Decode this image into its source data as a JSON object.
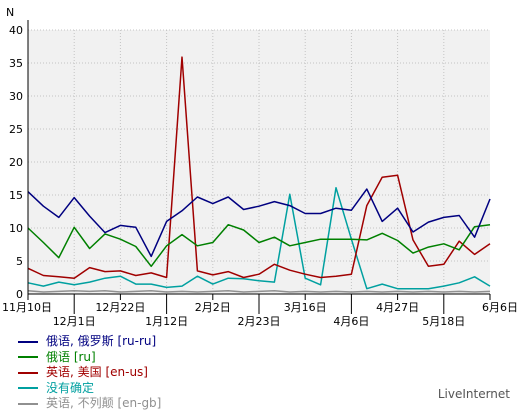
{
  "chart_data": {
    "type": "line",
    "ylabel": "N",
    "ylim": [
      0,
      40
    ],
    "yticks": [
      0,
      5,
      10,
      15,
      20,
      25,
      30,
      35,
      40
    ],
    "grid": true,
    "x_tick_labels": [
      {
        "label": "11月10日",
        "x": 0
      },
      {
        "label": "12月1日",
        "x": 3
      },
      {
        "label": "12月22日",
        "x": 6
      },
      {
        "label": "1月12日",
        "x": 9
      },
      {
        "label": "2月2日",
        "x": 12
      },
      {
        "label": "2月23日",
        "x": 15
      },
      {
        "label": "3月16日",
        "x": 18
      },
      {
        "label": "4月6日",
        "x": 21
      },
      {
        "label": "4月27日",
        "x": 24
      },
      {
        "label": "5月18日",
        "x": 27
      },
      {
        "label": "6月6日",
        "x": 30
      }
    ],
    "series": [
      {
        "name": "俄语, 俄罗斯 [ru-ru]",
        "color": "#000080",
        "values": [
          15.5,
          13.3,
          11.6,
          14.6,
          11.8,
          9.3,
          10.4,
          10.1,
          5.7,
          11.0,
          12.6,
          14.7,
          13.7,
          14.7,
          12.8,
          13.3,
          14.0,
          13.4,
          12.2,
          12.2,
          13.0,
          12.7,
          15.9,
          11.0,
          13.0,
          9.4,
          10.9,
          11.6,
          11.9,
          8.6,
          14.4
        ]
      },
      {
        "name": "俄语 [ru]",
        "color": "#008000",
        "values": [
          10.0,
          7.8,
          5.5,
          10.1,
          6.9,
          9.1,
          8.3,
          7.2,
          4.2,
          7.3,
          9.0,
          7.3,
          7.8,
          10.5,
          9.7,
          7.8,
          8.6,
          7.3,
          7.8,
          8.3,
          8.3,
          8.3,
          8.2,
          9.2,
          8.1,
          6.2,
          7.1,
          7.6,
          6.7,
          10.2,
          10.5
        ]
      },
      {
        "name": "英语, 美国 [en-us]",
        "color": "#a00000",
        "values": [
          3.9,
          2.8,
          2.6,
          2.4,
          4.0,
          3.4,
          3.5,
          2.8,
          3.2,
          2.5,
          35.9,
          3.5,
          2.9,
          3.4,
          2.5,
          3.0,
          4.5,
          3.6,
          3.0,
          2.5,
          2.7,
          3.0,
          13.4,
          17.7,
          18.0,
          8.2,
          4.2,
          4.5,
          8.0,
          6.0,
          7.6
        ]
      },
      {
        "name": "没有确定",
        "color": "#00a0a0",
        "values": [
          1.7,
          1.2,
          1.8,
          1.4,
          1.8,
          2.4,
          2.7,
          1.5,
          1.5,
          1.0,
          1.2,
          2.7,
          1.5,
          2.4,
          2.3,
          2.0,
          1.8,
          15.1,
          2.4,
          1.4,
          16.1,
          8.3,
          0.8,
          1.5,
          0.8,
          0.8,
          0.8,
          1.2,
          1.7,
          2.6,
          1.2
        ]
      },
      {
        "name": "英语, 不列颠 [en-gb]",
        "color": "#909090",
        "values": [
          0.5,
          0.3,
          0.4,
          0.5,
          0.4,
          0.5,
          0.3,
          0.4,
          0.5,
          0.3,
          0.4,
          0.3,
          0.4,
          0.5,
          0.3,
          0.4,
          0.5,
          0.3,
          0.4,
          0.3,
          0.4,
          0.3,
          0.4,
          0.3,
          0.4,
          0.3,
          0.4,
          0.3,
          0.4,
          0.3,
          0.4
        ]
      }
    ]
  },
  "legend": [
    {
      "label": "俄语, 俄罗斯 [ru-ru]",
      "color": "#000080"
    },
    {
      "label": "俄语 [ru]",
      "color": "#008000"
    },
    {
      "label": "英语, 美国 [en-us]",
      "color": "#a00000"
    },
    {
      "label": "没有确定",
      "color": "#00a0a0"
    },
    {
      "label": "英语, 不列颠 [en-gb]",
      "color": "#909090"
    }
  ],
  "watermark": "LiveInternet"
}
